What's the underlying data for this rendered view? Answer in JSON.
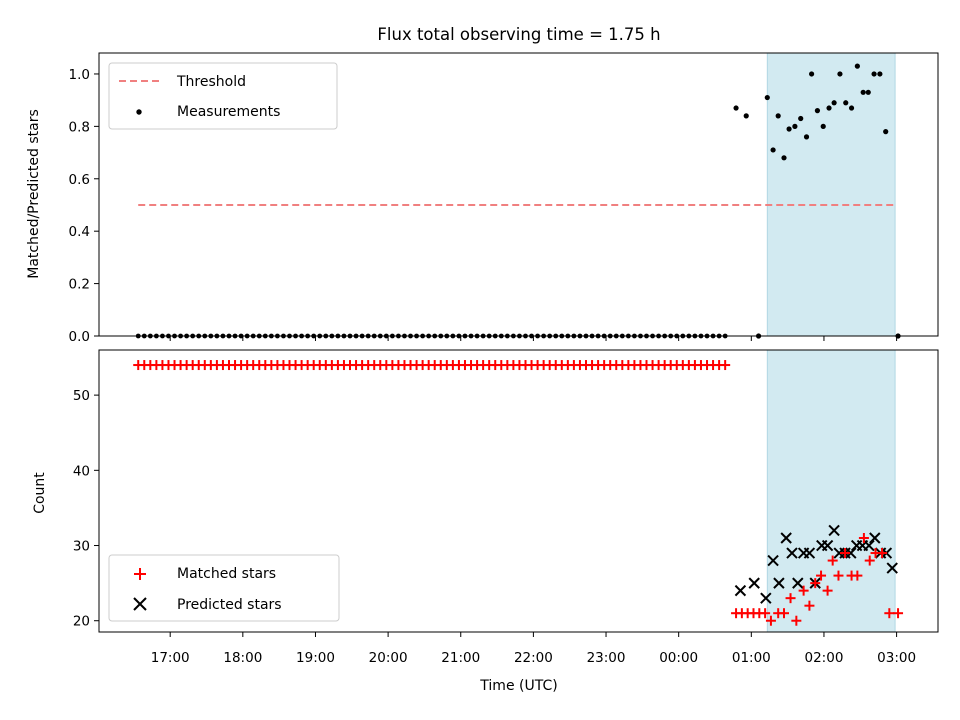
{
  "chart_data": [
    {
      "type": "scatter",
      "panel": "top",
      "title": "Flux total observing time = 1.75 h",
      "ylabel": "Matched/Predicted stars",
      "ylim": [
        0,
        1.08
      ],
      "yticks": [
        "0.0",
        "0.2",
        "0.4",
        "0.6",
        "0.8",
        "1.0"
      ],
      "ytick_values": [
        0,
        0.2,
        0.4,
        0.6,
        0.8,
        1.0
      ],
      "x_unit": "hours since 17:00 UTC",
      "xlim": [
        -0.98,
        10.57
      ],
      "xticks": [
        "17:00",
        "18:00",
        "19:00",
        "20:00",
        "21:00",
        "22:00",
        "23:00",
        "00:00",
        "01:00",
        "02:00",
        "03:00"
      ],
      "xtick_values": [
        0,
        1,
        2,
        3,
        4,
        5,
        6,
        7,
        8,
        9,
        10
      ],
      "shaded_region": {
        "x": [
          8.22,
          9.98
        ],
        "color": "#add8e6"
      },
      "legend": {
        "position": "top-left",
        "entries": [
          "Threshold",
          "Measurements"
        ]
      },
      "threshold": {
        "name": "Threshold",
        "y": 0.5,
        "x": [
          -0.44,
          9.98
        ],
        "color": "#f08080",
        "style": "dashed"
      },
      "zero_run": {
        "x_start": -0.44,
        "x_end": 7.68,
        "step": 0.0833
      },
      "measurements": {
        "name": "Measurements",
        "color": "#000000",
        "points": [
          [
            7.79,
            0.87
          ],
          [
            7.93,
            0.84
          ],
          [
            8.1,
            0.0
          ],
          [
            8.22,
            0.91
          ],
          [
            8.3,
            0.71
          ],
          [
            8.37,
            0.84
          ],
          [
            8.45,
            0.68
          ],
          [
            8.52,
            0.79
          ],
          [
            8.6,
            0.8
          ],
          [
            8.68,
            0.83
          ],
          [
            8.76,
            0.76
          ],
          [
            8.83,
            1.0
          ],
          [
            8.91,
            0.86
          ],
          [
            8.99,
            0.8
          ],
          [
            9.07,
            0.87
          ],
          [
            9.14,
            0.89
          ],
          [
            9.22,
            1.0
          ],
          [
            9.3,
            0.89
          ],
          [
            9.38,
            0.87
          ],
          [
            9.46,
            1.03
          ],
          [
            9.54,
            0.93
          ],
          [
            9.61,
            0.93
          ],
          [
            9.69,
            1.0
          ],
          [
            9.77,
            1.0
          ],
          [
            9.85,
            0.78
          ],
          [
            10.02,
            0.0
          ]
        ]
      }
    },
    {
      "type": "scatter",
      "panel": "bottom",
      "xlabel": "Time (UTC)",
      "ylabel": "Count",
      "ylim": [
        18.5,
        56.0
      ],
      "yticks": [
        "20",
        "30",
        "40",
        "50"
      ],
      "ytick_values": [
        20,
        30,
        40,
        50
      ],
      "legend": {
        "position": "bottom-left",
        "entries": [
          "Matched stars",
          "Predicted stars"
        ]
      },
      "matched_run": {
        "name": "Matched stars",
        "value": 54,
        "x_start": -0.44,
        "x_end": 7.68,
        "step": 0.0833,
        "color": "#ff0000"
      },
      "matched": {
        "name": "Matched stars",
        "color": "#ff0000",
        "points": [
          [
            7.79,
            21
          ],
          [
            7.87,
            21
          ],
          [
            7.95,
            21
          ],
          [
            8.03,
            21
          ],
          [
            8.11,
            21
          ],
          [
            8.19,
            21
          ],
          [
            8.27,
            20
          ],
          [
            8.37,
            21
          ],
          [
            8.45,
            21
          ],
          [
            8.54,
            23
          ],
          [
            8.62,
            20
          ],
          [
            8.72,
            24
          ],
          [
            8.8,
            22
          ],
          [
            8.88,
            25
          ],
          [
            8.96,
            26
          ],
          [
            9.05,
            24
          ],
          [
            9.12,
            28
          ],
          [
            9.2,
            26
          ],
          [
            9.29,
            29
          ],
          [
            9.38,
            26
          ],
          [
            9.46,
            26
          ],
          [
            9.55,
            31
          ],
          [
            9.63,
            28
          ],
          [
            9.71,
            29
          ],
          [
            9.8,
            29
          ],
          [
            9.9,
            21
          ],
          [
            10.02,
            21
          ]
        ]
      },
      "predicted": {
        "name": "Predicted stars",
        "color": "#000000",
        "points": [
          [
            7.85,
            24
          ],
          [
            8.04,
            25
          ],
          [
            8.2,
            23
          ],
          [
            8.3,
            28
          ],
          [
            8.38,
            25
          ],
          [
            8.48,
            31
          ],
          [
            8.56,
            29
          ],
          [
            8.64,
            25
          ],
          [
            8.72,
            29
          ],
          [
            8.8,
            29
          ],
          [
            8.88,
            25
          ],
          [
            8.97,
            30
          ],
          [
            9.05,
            30
          ],
          [
            9.14,
            32
          ],
          [
            9.21,
            29
          ],
          [
            9.29,
            29
          ],
          [
            9.37,
            29
          ],
          [
            9.45,
            30
          ],
          [
            9.53,
            30
          ],
          [
            9.62,
            30
          ],
          [
            9.7,
            31
          ],
          [
            9.78,
            29
          ],
          [
            9.86,
            29
          ],
          [
            9.94,
            27
          ]
        ]
      }
    }
  ]
}
